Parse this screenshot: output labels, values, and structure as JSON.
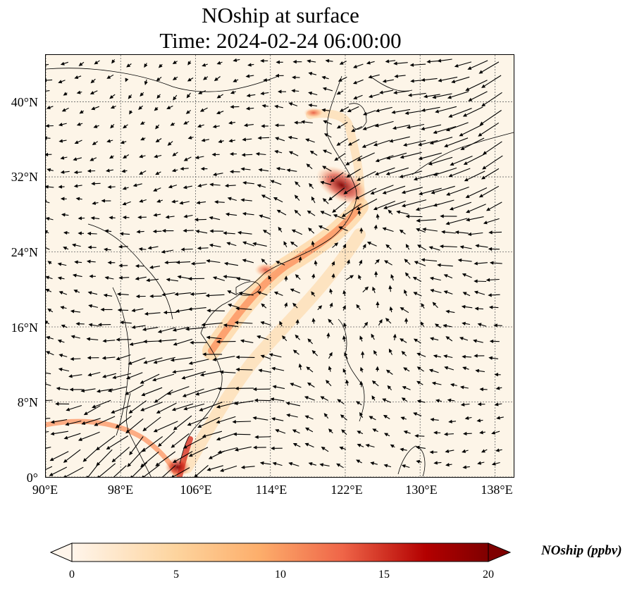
{
  "title": {
    "line1": "NOship at surface",
    "line2": "Time: 2024-02-24 06:00:00"
  },
  "map": {
    "variable": "NOship",
    "level": "surface",
    "units": "ppbv",
    "lon_range": [
      90,
      140
    ],
    "lat_range": [
      0,
      45
    ],
    "x_ticks": [
      "90°E",
      "98°E",
      "106°E",
      "114°E",
      "122°E",
      "130°E",
      "138°E"
    ],
    "y_ticks": [
      "0°",
      "8°N",
      "16°N",
      "24°N",
      "32°N",
      "40°N"
    ],
    "gridlines": "dotted",
    "overlay": "wind vectors (black arrows)",
    "colormap": "OrRd",
    "colors": {
      "low": "#fff5eb",
      "mid": "#fdae6b",
      "high": "#e34a33",
      "max": "#7f0000"
    }
  },
  "colorbar": {
    "label": "NOship (ppbv)",
    "ticks": [
      "0",
      "5",
      "10",
      "15",
      "20"
    ],
    "range": [
      0,
      20
    ],
    "extend": "both"
  }
}
